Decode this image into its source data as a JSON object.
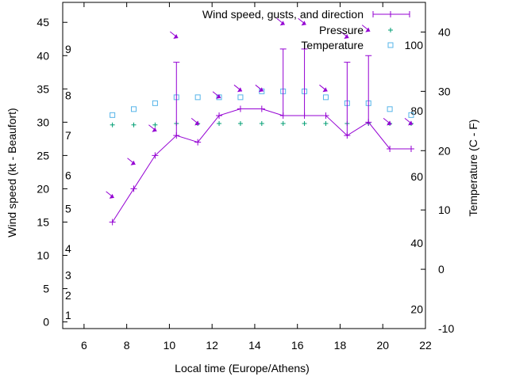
{
  "chart_data": {
    "type": "line",
    "title": "Wind speed, gusts, and direction",
    "xlabel": "Local time (Europe/Athens)",
    "ylabel": "Wind speed (kt - Beaufort)",
    "y2label": "Temperature (C - F)",
    "xlim": [
      5,
      22
    ],
    "ylim": [
      -1,
      48
    ],
    "y2lim": [
      -10,
      45
    ],
    "x_ticks": [
      6,
      8,
      10,
      12,
      14,
      16,
      18,
      20,
      22
    ],
    "y_ticks": [
      0,
      5,
      10,
      15,
      20,
      25,
      30,
      35,
      40,
      45
    ],
    "y2_ticks": [
      -10,
      0,
      10,
      20,
      30,
      40
    ],
    "beaufort_ticks": [
      {
        "label": "1",
        "kt": 1
      },
      {
        "label": "2",
        "kt": 4
      },
      {
        "label": "3",
        "kt": 7
      },
      {
        "label": "4",
        "kt": 11
      },
      {
        "label": "5",
        "kt": 17
      },
      {
        "label": "6",
        "kt": 22
      },
      {
        "label": "7",
        "kt": 28
      },
      {
        "label": "8",
        "kt": 34
      },
      {
        "label": "9",
        "kt": 41
      }
    ],
    "fahrenheit_ticks": [
      {
        "label": "20",
        "c": -6.7
      },
      {
        "label": "40",
        "c": 4.4
      },
      {
        "label": "60",
        "c": 15.6
      },
      {
        "label": "80",
        "c": 26.7
      },
      {
        "label": "100",
        "c": 37.8
      }
    ],
    "legend": {
      "position": "top-right",
      "entries": [
        "Wind speed, gusts, and direction",
        "Pressure",
        "Temperature"
      ]
    },
    "x": [
      7.33,
      8.33,
      9.33,
      10.33,
      11.33,
      12.33,
      13.33,
      14.33,
      15.33,
      16.33,
      17.33,
      18.33,
      19.33,
      20.33,
      21.33
    ],
    "series": [
      {
        "name": "Wind speed, gusts, and direction",
        "color": "#9400d3",
        "values": [
          15,
          20,
          25,
          28,
          27,
          31,
          32,
          32,
          31,
          31,
          31,
          28,
          30,
          26,
          26
        ],
        "gusts": [
          null,
          null,
          null,
          39,
          null,
          null,
          null,
          null,
          41,
          41,
          null,
          39,
          40,
          null,
          null
        ],
        "direction_arrow_height_kt": [
          19,
          24,
          29,
          43,
          30,
          34,
          35,
          35,
          45,
          45,
          35,
          43,
          44,
          30,
          30
        ]
      },
      {
        "name": "Pressure",
        "color": "#009e73",
        "values_kt_axis": [
          29.6,
          29.6,
          29.6,
          29.8,
          29.8,
          29.8,
          29.8,
          29.8,
          29.8,
          29.8,
          29.8,
          29.8,
          29.8,
          29.8,
          29.8
        ]
      },
      {
        "name": "Temperature",
        "color": "#56b4e9",
        "values_c": [
          26,
          27,
          28,
          29,
          29,
          29,
          29,
          30,
          30,
          30,
          29,
          28,
          28,
          27,
          26
        ]
      }
    ]
  }
}
